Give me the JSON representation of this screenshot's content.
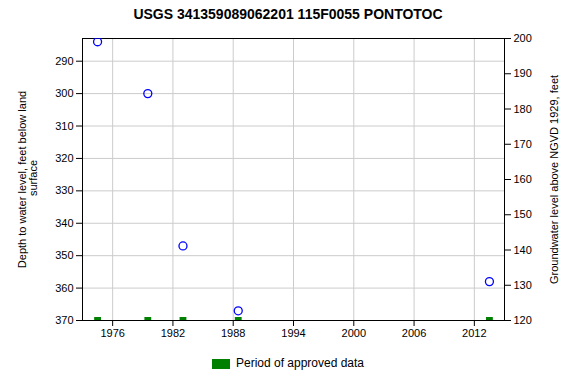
{
  "chart_data": {
    "type": "scatter",
    "title": "USGS 341359089062201 115F0055  PONTOTOC",
    "ylabel": "Depth to water level, feet below land\n surface",
    "y2label": "Groundwater level above NGVD 1929, feet",
    "x": [
      1974.5,
      1979.5,
      1983.0,
      1988.5,
      2013.5
    ],
    "series": [
      {
        "color": "#0000ff",
        "marker": "open_circle",
        "values": [
          284.0,
          300.0,
          347.0,
          367.0,
          358.0
        ]
      },
      {
        "name": "Period of approved data",
        "color": "#008000",
        "marker": "square",
        "values": [
          370.0,
          370.0,
          370.0,
          370.0,
          370.0
        ]
      }
    ],
    "xlim": [
      1973,
      2015
    ],
    "xticks": [
      1976,
      1982,
      1988,
      1994,
      2000,
      2006,
      2012
    ],
    "ylim": [
      370,
      283
    ],
    "yticks": [
      290,
      300,
      310,
      320,
      330,
      340,
      350,
      360,
      370
    ],
    "y2lim": [
      120,
      200
    ],
    "y2ticks": [
      120,
      130,
      140,
      150,
      160,
      170,
      180,
      190,
      200
    ],
    "grid": true,
    "legend": "bottom"
  }
}
